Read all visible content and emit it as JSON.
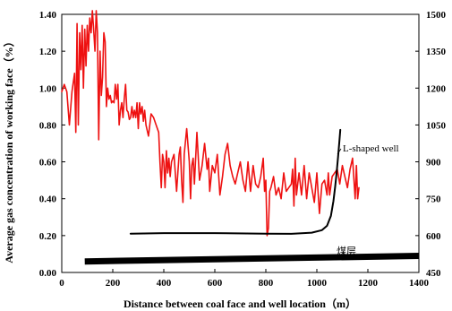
{
  "chart_data": {
    "type": "line",
    "title": "",
    "xlabel": "Distance between coal face and well location（m）",
    "ylabel": "Average gas concentration of working face（%）",
    "xlim": [
      0,
      1400
    ],
    "ylim": [
      0,
      1.4
    ],
    "y2lim": [
      450,
      1500
    ],
    "x_ticks": [
      "0",
      "200",
      "400",
      "600",
      "800",
      "1000",
      "1200",
      "1400"
    ],
    "y_ticks": [
      "0.00",
      "0.20",
      "0.40",
      "0.60",
      "0.80",
      "1.00",
      "1.20",
      "1.40"
    ],
    "y2_ticks": [
      "450",
      "600",
      "750",
      "900",
      "1050",
      "1200",
      "1350",
      "1500"
    ],
    "grid": false,
    "legend": "none",
    "annotations": {
      "well_label": "L-shaped well",
      "seam_label": "煤层"
    },
    "colors": {
      "gas_series": "#ee1111",
      "well_and_seam": "#000000"
    },
    "series": [
      {
        "axis": "left",
        "color": "#ee1111",
        "x": [
          0,
          10,
          20,
          30,
          40,
          50,
          55,
          60,
          65,
          70,
          75,
          80,
          85,
          90,
          95,
          100,
          105,
          110,
          115,
          120,
          125,
          130,
          135,
          140,
          145,
          150,
          155,
          160,
          165,
          170,
          175,
          180,
          185,
          190,
          195,
          200,
          205,
          210,
          215,
          220,
          225,
          230,
          235,
          240,
          245,
          250,
          255,
          260,
          265,
          270,
          275,
          280,
          285,
          290,
          295,
          300,
          305,
          310,
          315,
          320,
          325,
          330,
          340,
          350,
          360,
          370,
          380,
          385,
          390,
          395,
          400,
          405,
          410,
          415,
          420,
          425,
          430,
          440,
          450,
          460,
          465,
          470,
          475,
          480,
          490,
          500,
          505,
          510,
          515,
          520,
          530,
          540,
          550,
          560,
          570,
          575,
          580,
          590,
          600,
          610,
          620,
          630,
          640,
          650,
          660,
          670,
          680,
          690,
          700,
          710,
          720,
          730,
          740,
          750,
          760,
          770,
          780,
          790,
          795,
          800,
          805,
          810,
          815,
          820,
          830,
          840,
          850,
          860,
          870,
          880,
          890,
          900,
          905,
          910,
          915,
          920,
          930,
          940,
          950,
          960,
          970,
          980,
          990,
          1000,
          1010,
          1020,
          1030,
          1040,
          1045,
          1050,
          1060,
          1070,
          1080,
          1090,
          1100,
          1110,
          1120,
          1130,
          1140,
          1150,
          1155,
          1160,
          1165
        ],
        "y": [
          0.98,
          1.02,
          0.98,
          0.8,
          0.98,
          1.08,
          0.76,
          1.35,
          0.8,
          1.3,
          1.1,
          1.34,
          1.0,
          1.32,
          1.12,
          1.34,
          1.2,
          1.38,
          1.3,
          1.42,
          1.32,
          1.2,
          1.42,
          1.3,
          0.72,
          1.2,
          0.96,
          1.06,
          1.3,
          1.25,
          0.9,
          1.0,
          0.94,
          0.96,
          0.92,
          0.93,
          0.92,
          1.02,
          0.94,
          1.02,
          0.8,
          0.88,
          0.92,
          0.84,
          0.94,
          1.02,
          0.88,
          0.87,
          0.83,
          0.84,
          0.9,
          0.84,
          0.88,
          0.84,
          0.92,
          0.78,
          0.92,
          0.86,
          0.9,
          0.82,
          0.88,
          0.8,
          0.74,
          0.86,
          0.84,
          0.8,
          0.76,
          0.6,
          0.46,
          0.64,
          0.6,
          0.46,
          0.66,
          0.54,
          0.62,
          0.52,
          0.6,
          0.64,
          0.44,
          0.64,
          0.68,
          0.5,
          0.38,
          0.64,
          0.78,
          0.6,
          0.4,
          0.58,
          0.62,
          0.48,
          0.76,
          0.5,
          0.58,
          0.7,
          0.56,
          0.62,
          0.44,
          0.58,
          0.54,
          0.64,
          0.42,
          0.52,
          0.64,
          0.7,
          0.58,
          0.52,
          0.48,
          0.54,
          0.6,
          0.5,
          0.44,
          0.6,
          0.44,
          0.58,
          0.48,
          0.46,
          0.52,
          0.62,
          0.44,
          0.5,
          0.2,
          0.24,
          0.44,
          0.46,
          0.52,
          0.42,
          0.46,
          0.4,
          0.54,
          0.44,
          0.46,
          0.48,
          0.56,
          0.36,
          0.62,
          0.42,
          0.54,
          0.42,
          0.58,
          0.4,
          0.54,
          0.46,
          0.38,
          0.54,
          0.32,
          0.48,
          0.5,
          0.42,
          0.54,
          0.42,
          0.52,
          0.54,
          0.56,
          0.48,
          0.58,
          0.52,
          0.46,
          0.56,
          0.62,
          0.4,
          0.58,
          0.4,
          0.46
        ]
      },
      {
        "axis": "right",
        "color": "#000000",
        "x": [
          270,
          400,
          600,
          800,
          900,
          980,
          1020,
          1040,
          1055,
          1065,
          1072,
          1078,
          1083,
          1088,
          1092
        ],
        "y": [
          608,
          610,
          610,
          608,
          607,
          612,
          622,
          640,
          680,
          740,
          800,
          860,
          920,
          980,
          1030
        ]
      },
      {
        "axis": "left",
        "color": "#000000",
        "x": [
          90,
          1400
        ],
        "y": [
          0.06,
          0.09
        ]
      }
    ]
  }
}
